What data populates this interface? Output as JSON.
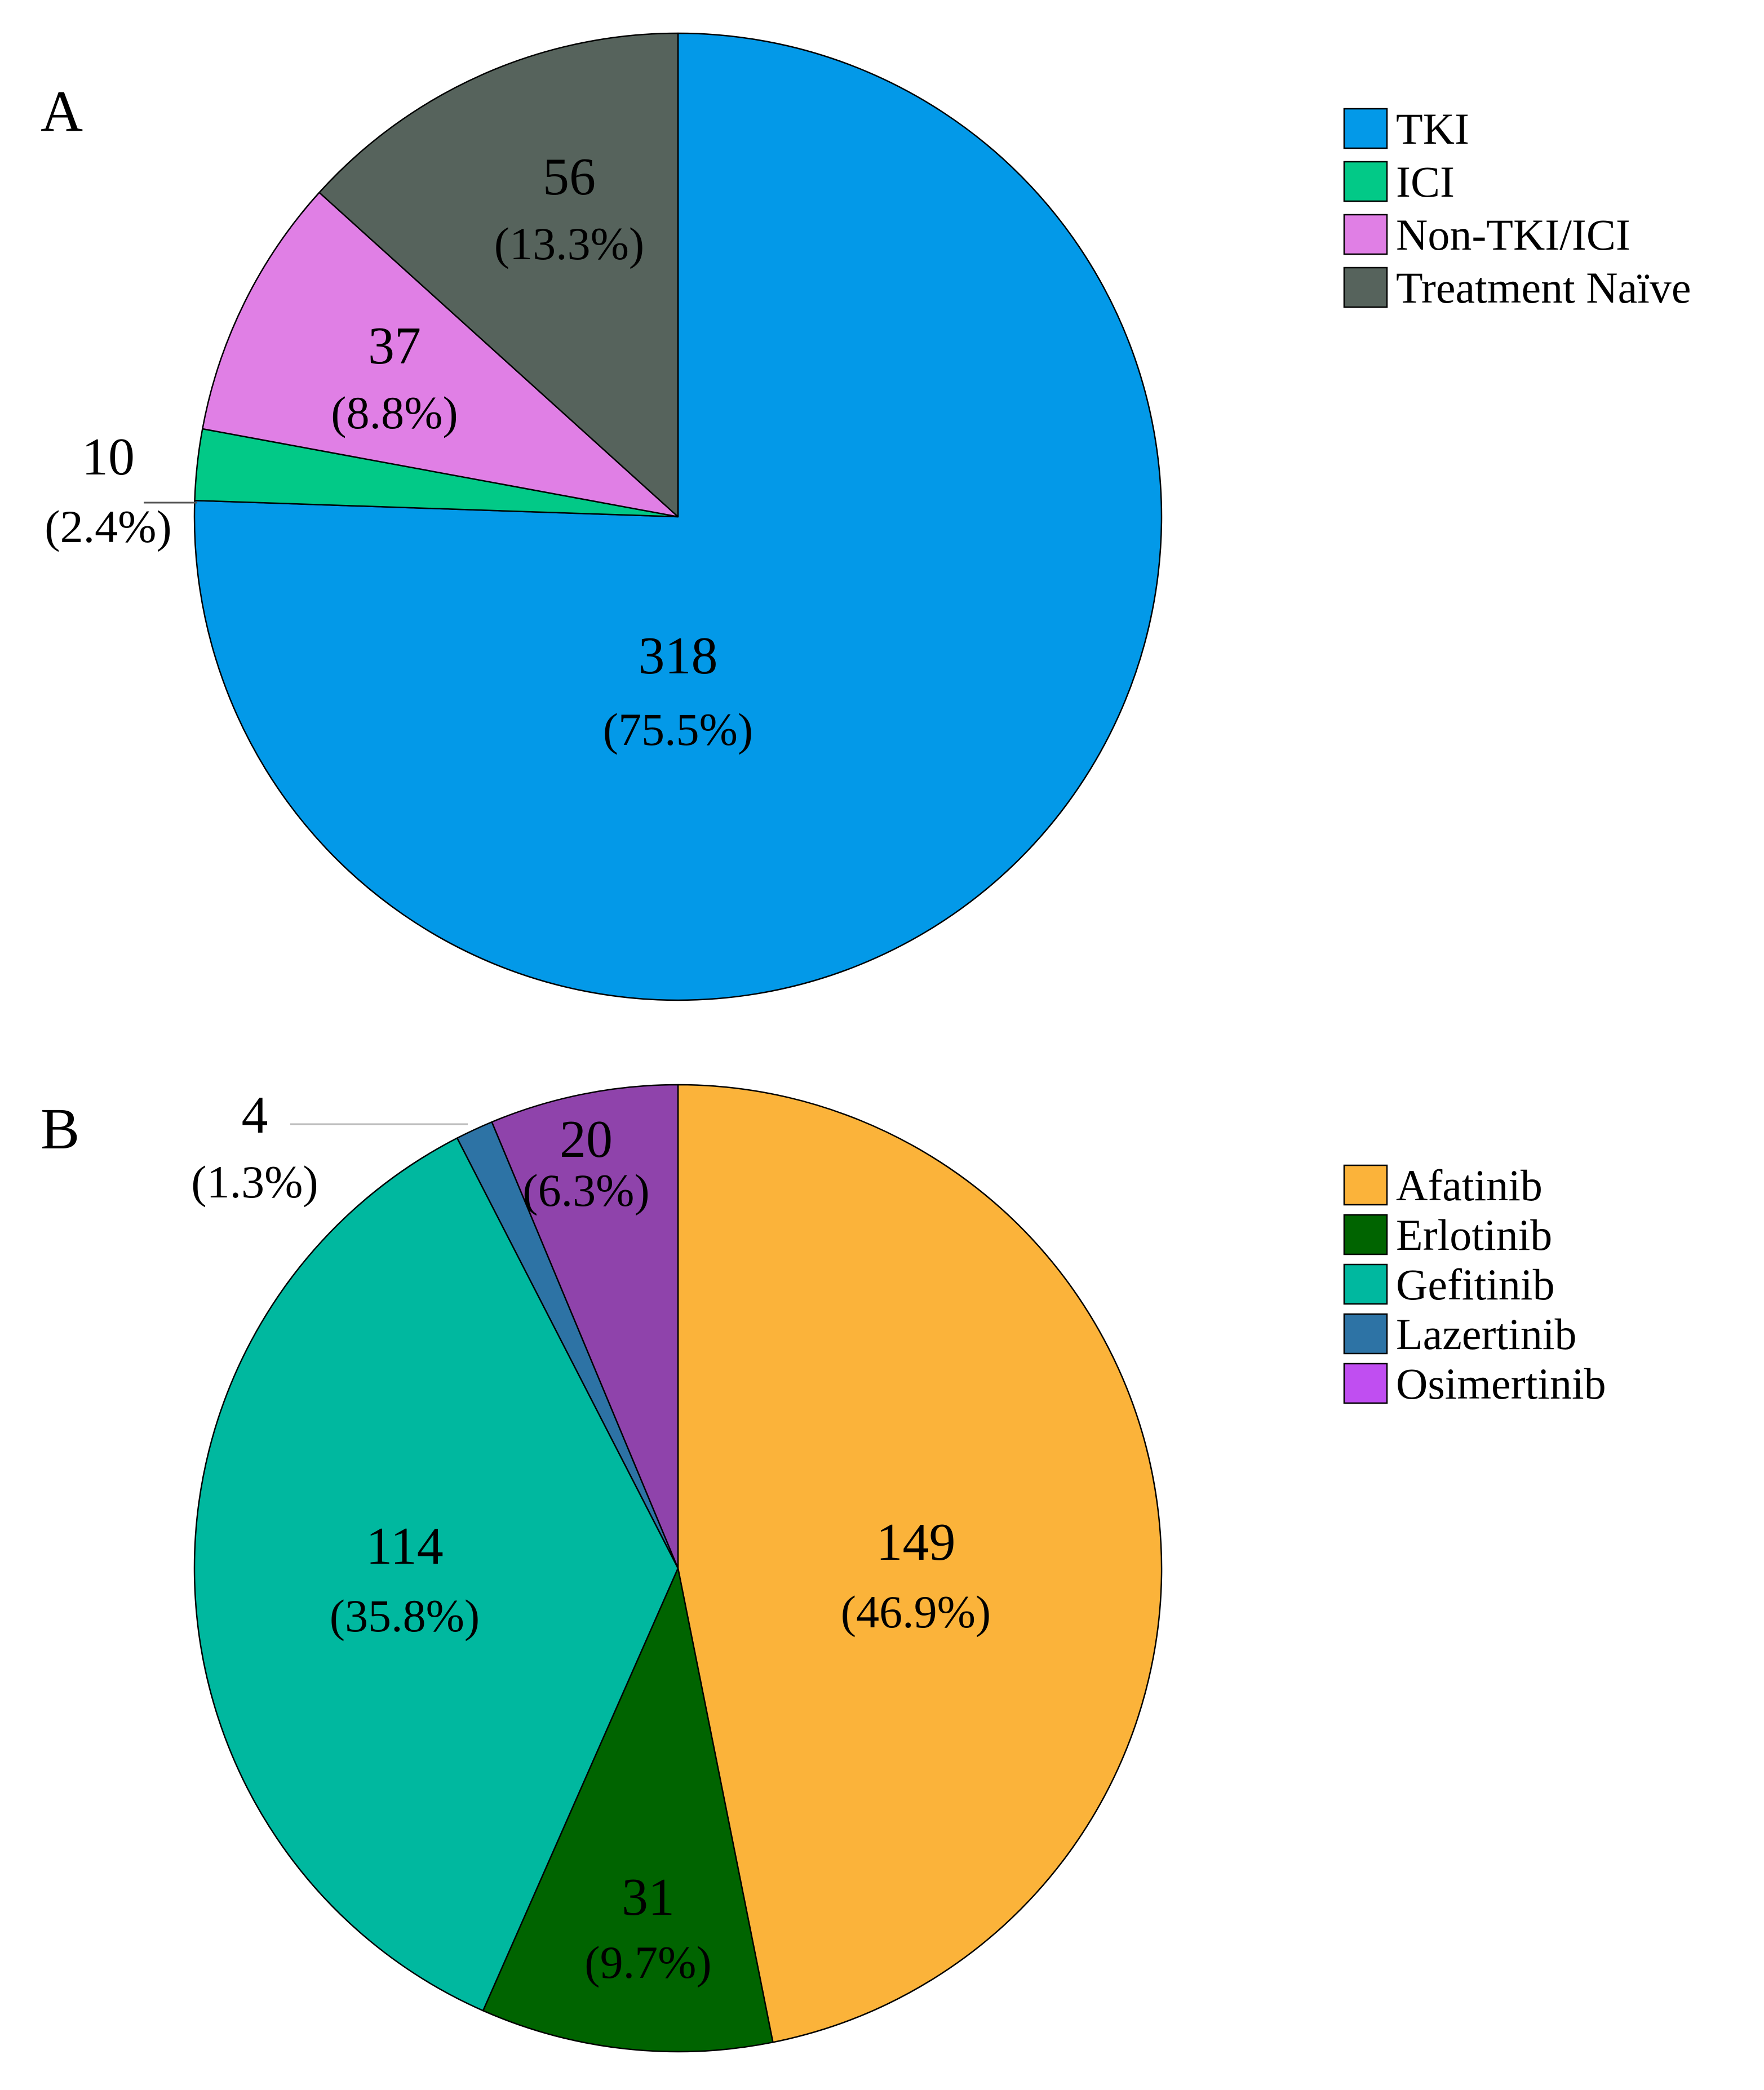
{
  "chart_data": [
    {
      "type": "pie",
      "panel_label": "A",
      "legend_position": "top-right",
      "categories": [
        "TKI",
        "ICI",
        "Non-TKI/ICI",
        "Treatment Naïve"
      ],
      "values": [
        318,
        10,
        37,
        56
      ],
      "percent_labels": [
        "(75.5%)",
        "(2.4%)",
        "(8.8%)",
        "(13.3%)"
      ],
      "colors": [
        "#0399e8",
        "#02c987",
        "#e07fe5",
        "#56635c"
      ],
      "start_angle_deg": 0,
      "direction": "clockwise",
      "external_labels": [
        "ICI"
      ]
    },
    {
      "type": "pie",
      "panel_label": "B",
      "legend_position": "right",
      "categories": [
        "Afatinib",
        "Erlotinib",
        "Gefitinib",
        "Lazertinib",
        "Osimertinib"
      ],
      "values": [
        149,
        31,
        114,
        4,
        20
      ],
      "percent_labels": [
        "(46.9%)",
        "(9.7%)",
        "(35.8%)",
        "(1.3%)",
        "(6.3%)"
      ],
      "colors": [
        "#fbb33a",
        "#006400",
        "#00b89f",
        "#2d73a5",
        "#8f43ab"
      ],
      "legend_colors": [
        "#fbb33a",
        "#006400",
        "#00b89f",
        "#2d73a5",
        "#c04ef1"
      ],
      "start_angle_deg": 0,
      "direction": "clockwise",
      "external_labels": [
        "Lazertinib"
      ]
    }
  ]
}
